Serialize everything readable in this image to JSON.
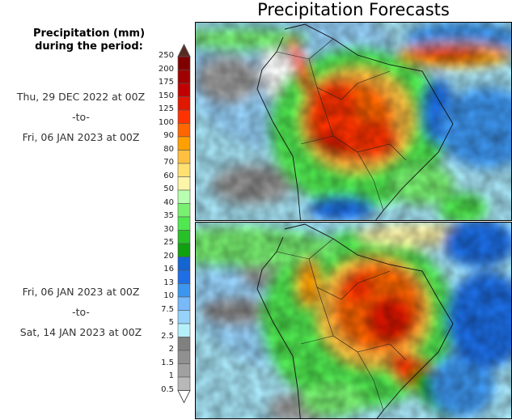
{
  "title": "Precipitation Forecasts",
  "legend": {
    "title_line1": "Precipitation (mm)",
    "title_line2": "during the period:",
    "labels": [
      "250",
      "200",
      "175",
      "150",
      "125",
      "100",
      "90",
      "80",
      "70",
      "60",
      "50",
      "40",
      "35",
      "30",
      "25",
      "20",
      "16",
      "13",
      "10",
      "7.5",
      "5",
      "2.5",
      "2",
      "1.5",
      "1",
      "0.5"
    ],
    "colors": [
      "#800000",
      "#a00000",
      "#c00000",
      "#e01800",
      "#ff3300",
      "#ff6600",
      "#ffa000",
      "#ffc040",
      "#ffe070",
      "#fff5a8",
      "#b8ffb0",
      "#78f070",
      "#50e850",
      "#28c028",
      "#10a010",
      "#1464d2",
      "#1e6ee6",
      "#3c96f0",
      "#78b9fa",
      "#96d2fa",
      "#b4f0fa",
      "#808080",
      "#909090",
      "#a0a0a0",
      "#b8b8b8"
    ],
    "over_color": "#5a2a22",
    "under_color": "#ffffff"
  },
  "periods": [
    {
      "start": "Thu, 29 DEC 2022 at 00Z",
      "sep": "-to-",
      "end": "Fri, 06 JAN 2023 at 00Z"
    },
    {
      "start": "Fri, 06 JAN 2023 at 00Z",
      "sep": "-to-",
      "end": "Sat, 14 JAN 2023 at 00Z"
    }
  ]
}
